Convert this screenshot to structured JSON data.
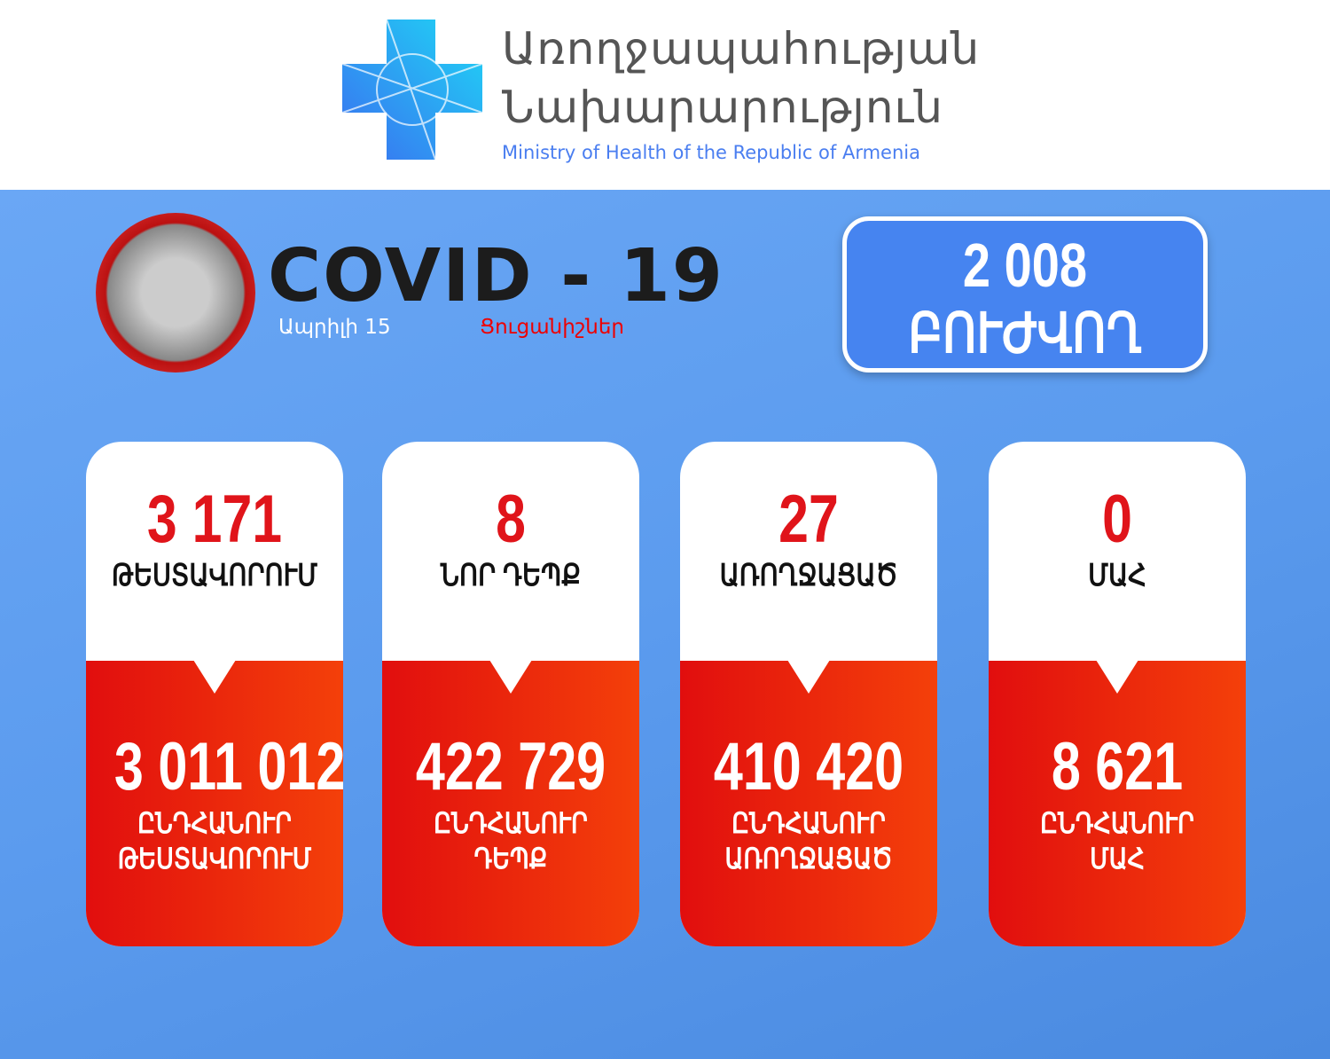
{
  "header": {
    "title_line1": "Առողջապահության",
    "title_line2": "Նախարարություն",
    "subtitle": "Ministry of Health of the Republic of Armenia"
  },
  "banner": {
    "title": "COVID - 19",
    "date": "Ապրիլի 15",
    "indicators": "Ցուցանիշներ"
  },
  "recovered_box": {
    "value": "2 008",
    "label": "ԲՈՒԺՎՈՂ"
  },
  "cards": [
    {
      "daily_value": "3 171",
      "daily_label": "ԹԵՍՏԱՎՈՐՈՒՄ",
      "total_value": "3 011 012",
      "total_label1": "ԸՆԴՀԱՆՈՒՐ",
      "total_label2": "ԹԵՍՏԱՎՈՐՈՒՄ"
    },
    {
      "daily_value": "8",
      "daily_label": "ՆՈՐ ԴԵՊՔ",
      "total_value": "422 729",
      "total_label1": "ԸՆԴՀԱՆՈՒՐ",
      "total_label2": "ԴԵՊՔ"
    },
    {
      "daily_value": "27",
      "daily_label": "ԱՌՈՂՋԱՑԱԾ",
      "total_value": "410 420",
      "total_label1": "ԸՆԴՀԱՆՈՒՐ",
      "total_label2": "ԱՌՈՂՋԱՑԱԾ"
    },
    {
      "daily_value": "0",
      "daily_label": "ՄԱՀ",
      "total_value": "8 621",
      "total_label1": "ԸՆԴՀԱՆՈՒՐ",
      "total_label2": "ՄԱՀ"
    }
  ],
  "colors": {
    "background": "#5b9bee",
    "accent_red": "#e0141a",
    "box_blue": "#4684f0"
  }
}
